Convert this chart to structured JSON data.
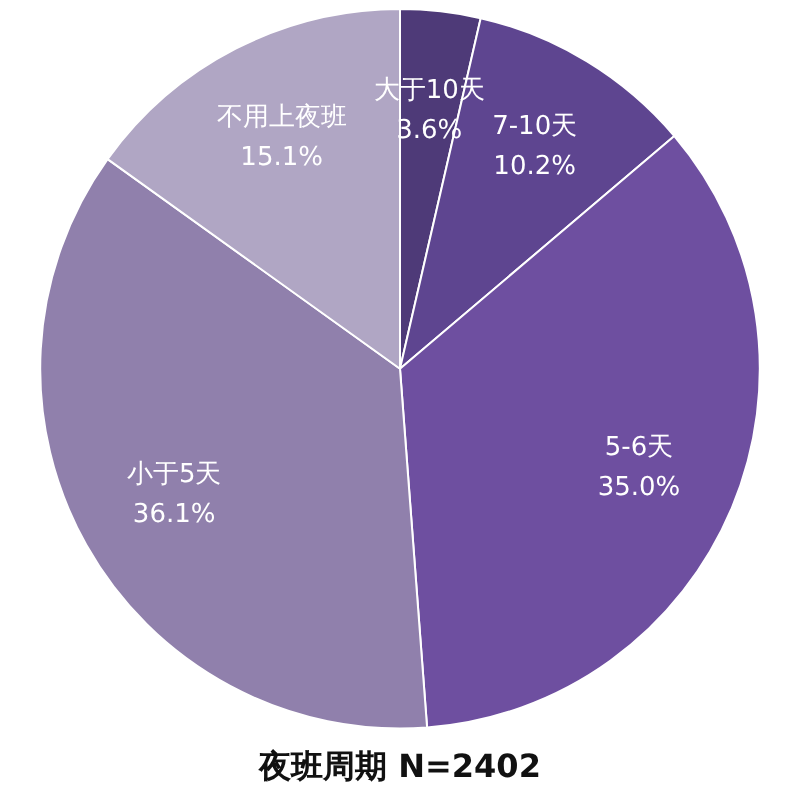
{
  "chart_data": {
    "type": "pie",
    "title": "夜班周期 N=2402",
    "categories": [
      "大于10天",
      "7-10天",
      "5-6天",
      "小于5天",
      "不用上夜班"
    ],
    "values": [
      3.6,
      10.2,
      35.0,
      36.1,
      15.1
    ],
    "value_labels": [
      "3.6%",
      "10.2%",
      "35.0%",
      "36.1%",
      "15.1%"
    ],
    "colors": [
      "#4e3a78",
      "#5e4590",
      "#6e4fa0",
      "#9080ac",
      "#b0a6c4"
    ],
    "legend": false
  }
}
